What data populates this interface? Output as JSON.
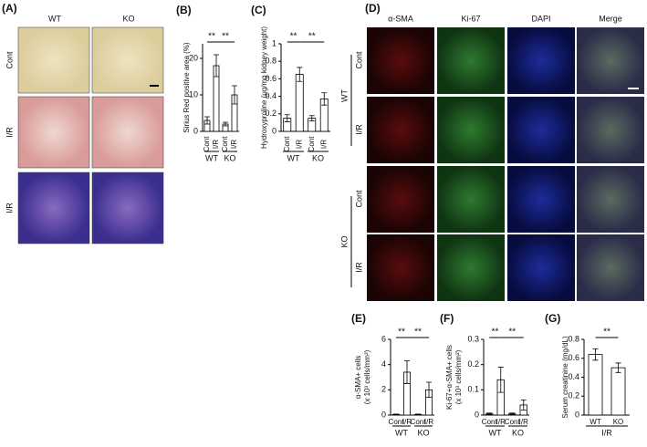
{
  "panels": {
    "A": {
      "label": "(A)",
      "columns": [
        "WT",
        "KO"
      ],
      "rows": [
        "Cont",
        "I/R",
        "I/R"
      ]
    },
    "D": {
      "label": "(D)",
      "columns": [
        "α-SMA",
        "Ki-67",
        "DAPI",
        "Merge"
      ],
      "groups": [
        "WT",
        "KO"
      ],
      "rows": [
        "Cont",
        "I/R",
        "Cont",
        "I/R"
      ]
    }
  },
  "chart_data": [
    {
      "type": "bar",
      "panel": "(B)",
      "ylabel": [
        "Sirius Red positive area (%)"
      ],
      "categories": [
        "Cont",
        "I/R",
        "Cont",
        "I/R"
      ],
      "groups": [
        "WT",
        "KO"
      ],
      "values": [
        3,
        18,
        2,
        10
      ],
      "errors": [
        1,
        3,
        0.5,
        2.5
      ],
      "ylim": [
        0,
        24
      ],
      "yticks": [
        0,
        10,
        20
      ],
      "significance": [
        "**",
        "**"
      ]
    },
    {
      "type": "bar",
      "panel": "(C)",
      "ylabel": [
        "Hydroxyproline (μg/mg kidney weight)"
      ],
      "categories": [
        "Cont",
        "I/R",
        "Cont",
        "I/R"
      ],
      "groups": [
        "WT",
        "KO"
      ],
      "values": [
        0.15,
        0.65,
        0.15,
        0.37
      ],
      "errors": [
        0.04,
        0.08,
        0.03,
        0.07
      ],
      "ylim": [
        0,
        1
      ],
      "yticks": [
        0,
        0.2,
        0.4,
        0.6,
        0.8,
        1
      ],
      "significance": [
        "**",
        "**"
      ]
    },
    {
      "type": "bar",
      "panel": "(E)",
      "ylabel": [
        "α-SMA+ cells",
        "(x 10³ cells/mm²)"
      ],
      "categories": [
        "Cont",
        "I/R",
        "Cont",
        "I/R"
      ],
      "groups": [
        "WT",
        "KO"
      ],
      "values": [
        0.05,
        3.4,
        0.05,
        2.0
      ],
      "errors": [
        0.03,
        0.9,
        0.03,
        0.6
      ],
      "ylim": [
        0,
        6
      ],
      "yticks": [
        0,
        2,
        4,
        6
      ],
      "significance": [
        "**",
        "**"
      ]
    },
    {
      "type": "bar",
      "panel": "(F)",
      "ylabel": [
        "Ki-67+α-SMA+ cells",
        "(x 10³ cells/mm²)"
      ],
      "categories": [
        "Cont",
        "I/R",
        "Cont",
        "I/R"
      ],
      "groups": [
        "WT",
        "KO"
      ],
      "values": [
        0.005,
        0.14,
        0.005,
        0.04
      ],
      "errors": [
        0.003,
        0.05,
        0.003,
        0.02
      ],
      "ylim": [
        0,
        0.3
      ],
      "yticks": [
        0,
        0.1,
        0.2,
        0.3
      ],
      "significance": [
        "**",
        "**"
      ]
    },
    {
      "type": "bar",
      "panel": "(G)",
      "ylabel": [
        "Serum creatinine (mg/dL)"
      ],
      "categories": [
        "WT",
        "KO"
      ],
      "groups": [
        "I/R"
      ],
      "values": [
        0.64,
        0.5
      ],
      "errors": [
        0.06,
        0.05
      ],
      "ylim": [
        0,
        0.8
      ],
      "yticks": [
        0,
        0.2,
        0.4,
        0.6,
        0.8
      ],
      "significance": [
        "**"
      ]
    }
  ]
}
